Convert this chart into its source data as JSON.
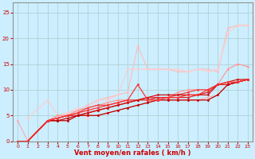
{
  "xlabel": "Vent moyen/en rafales ( km/h )",
  "bg_color": "#cceeff",
  "grid_color": "#aacccc",
  "xlim": [
    -0.5,
    23.5
  ],
  "ylim": [
    0,
    27
  ],
  "yticks": [
    0,
    5,
    10,
    15,
    20,
    25
  ],
  "xticks": [
    0,
    1,
    2,
    3,
    4,
    5,
    6,
    7,
    8,
    9,
    10,
    11,
    12,
    13,
    14,
    15,
    16,
    17,
    18,
    19,
    20,
    21,
    22,
    23
  ],
  "series": [
    {
      "x": [
        0,
        1,
        2,
        3,
        4,
        5,
        6,
        7,
        8,
        9,
        10,
        11,
        12,
        13,
        14,
        15,
        16,
        17,
        18,
        19,
        20,
        21,
        22,
        23
      ],
      "y": [
        4,
        0,
        null,
        4,
        4,
        4.5,
        5,
        5,
        5,
        5.5,
        6,
        6.5,
        7,
        7.5,
        8,
        8,
        8,
        8,
        8,
        8.5,
        9,
        11,
        11.5,
        12
      ],
      "color": "#ffaaaa",
      "lw": 0.8,
      "marker": "o",
      "ms": 2
    },
    {
      "x": [
        0,
        1,
        3,
        4,
        5,
        6,
        7,
        8,
        9,
        10,
        11,
        12,
        13,
        14,
        15,
        16,
        17,
        18,
        19,
        20,
        21,
        22,
        23
      ],
      "y": [
        0,
        0,
        4,
        5,
        5.5,
        6,
        7,
        8,
        8.5,
        9,
        9.5,
        18.5,
        14,
        14,
        14,
        13.5,
        13.5,
        14,
        14,
        13.5,
        22,
        22.5,
        22.5
      ],
      "color": "#ffbbbb",
      "lw": 0.8,
      "marker": "o",
      "ms": 2
    },
    {
      "x": [
        1,
        3,
        4,
        5,
        6,
        7,
        8,
        9,
        10,
        11,
        12,
        13,
        14,
        15,
        16,
        17,
        18,
        19,
        20,
        21,
        22,
        23
      ],
      "y": [
        4.5,
        8,
        5,
        5.5,
        6.5,
        4.5,
        8,
        8,
        9,
        14,
        14,
        14,
        14,
        14,
        14,
        13.5,
        14,
        13.5,
        14,
        21,
        22.5,
        22.5
      ],
      "color": "#ffcccc",
      "lw": 0.8,
      "marker": "o",
      "ms": 2
    },
    {
      "x": [
        0,
        1,
        3,
        4,
        5,
        6,
        7,
        8,
        9,
        10,
        11,
        12,
        13,
        14,
        15,
        16,
        17,
        18,
        19,
        20,
        21,
        22,
        23
      ],
      "y": [
        0,
        0,
        4,
        5,
        5,
        6,
        6.5,
        7,
        7.5,
        8,
        8,
        8,
        8.5,
        8.5,
        8.5,
        9.5,
        10,
        10,
        10,
        11,
        14,
        15,
        14.5
      ],
      "color": "#ff9999",
      "lw": 0.9,
      "marker": "o",
      "ms": 2
    },
    {
      "x": [
        0,
        1,
        3,
        4,
        5,
        6,
        7,
        8,
        9,
        10,
        11,
        12,
        13,
        14,
        15,
        16,
        17,
        18,
        19,
        20,
        21,
        22,
        23
      ],
      "y": [
        0,
        0,
        4,
        4.5,
        5,
        5.5,
        6.5,
        7,
        7,
        7.5,
        8,
        8,
        8.5,
        8.5,
        8.5,
        9,
        9.5,
        10,
        10,
        11,
        11,
        11.5,
        12
      ],
      "color": "#ee4444",
      "lw": 0.9,
      "marker": "o",
      "ms": 2
    },
    {
      "x": [
        0,
        1,
        3,
        4,
        5,
        6,
        7,
        8,
        9,
        10,
        11,
        12,
        13,
        14,
        15,
        16,
        17,
        18,
        19,
        20,
        21,
        22,
        23
      ],
      "y": [
        0,
        0,
        4,
        4.5,
        5,
        5,
        5.5,
        6,
        6.5,
        7,
        7.5,
        8,
        8,
        8.5,
        8.5,
        8.5,
        8.5,
        9,
        9.5,
        11,
        11,
        11.5,
        12
      ],
      "color": "#dd2222",
      "lw": 0.9,
      "marker": "o",
      "ms": 2
    },
    {
      "x": [
        0,
        1,
        3,
        4,
        5,
        6,
        7,
        8,
        9,
        10,
        11,
        12,
        13,
        14,
        15,
        16,
        17,
        18,
        19,
        20,
        21,
        22,
        23
      ],
      "y": [
        0,
        0,
        4,
        4,
        4.5,
        5,
        5.5,
        6,
        6.5,
        7,
        7.5,
        8,
        8.5,
        9,
        9,
        9,
        9,
        9,
        9,
        11,
        11.5,
        12,
        12
      ],
      "color": "#cc1111",
      "lw": 0.9,
      "marker": "o",
      "ms": 2
    },
    {
      "x": [
        0,
        1,
        3,
        4,
        5,
        6,
        7,
        8,
        9,
        10,
        11,
        12,
        13,
        14,
        15,
        16,
        17,
        18,
        19,
        20,
        21,
        22,
        23
      ],
      "y": [
        0,
        0,
        4,
        4,
        4,
        5,
        5,
        5,
        5.5,
        6,
        6.5,
        7,
        7.5,
        8,
        8,
        8,
        8,
        8,
        8,
        9,
        11,
        11.5,
        12
      ],
      "color": "#bb0000",
      "lw": 0.9,
      "marker": "o",
      "ms": 2
    },
    {
      "x": [
        0,
        1,
        3,
        4,
        5,
        6,
        7,
        8,
        9,
        10,
        11,
        12,
        13,
        14,
        15,
        16,
        17,
        18,
        19,
        20,
        21,
        22,
        23
      ],
      "y": [
        0,
        0,
        4,
        4.5,
        5,
        5.5,
        6,
        6.5,
        7,
        7.5,
        8,
        11,
        8,
        8,
        8.5,
        8.5,
        9,
        9,
        10,
        11,
        11.5,
        11.5,
        12
      ],
      "color": "#ff3333",
      "lw": 0.9,
      "marker": "o",
      "ms": 2
    }
  ]
}
